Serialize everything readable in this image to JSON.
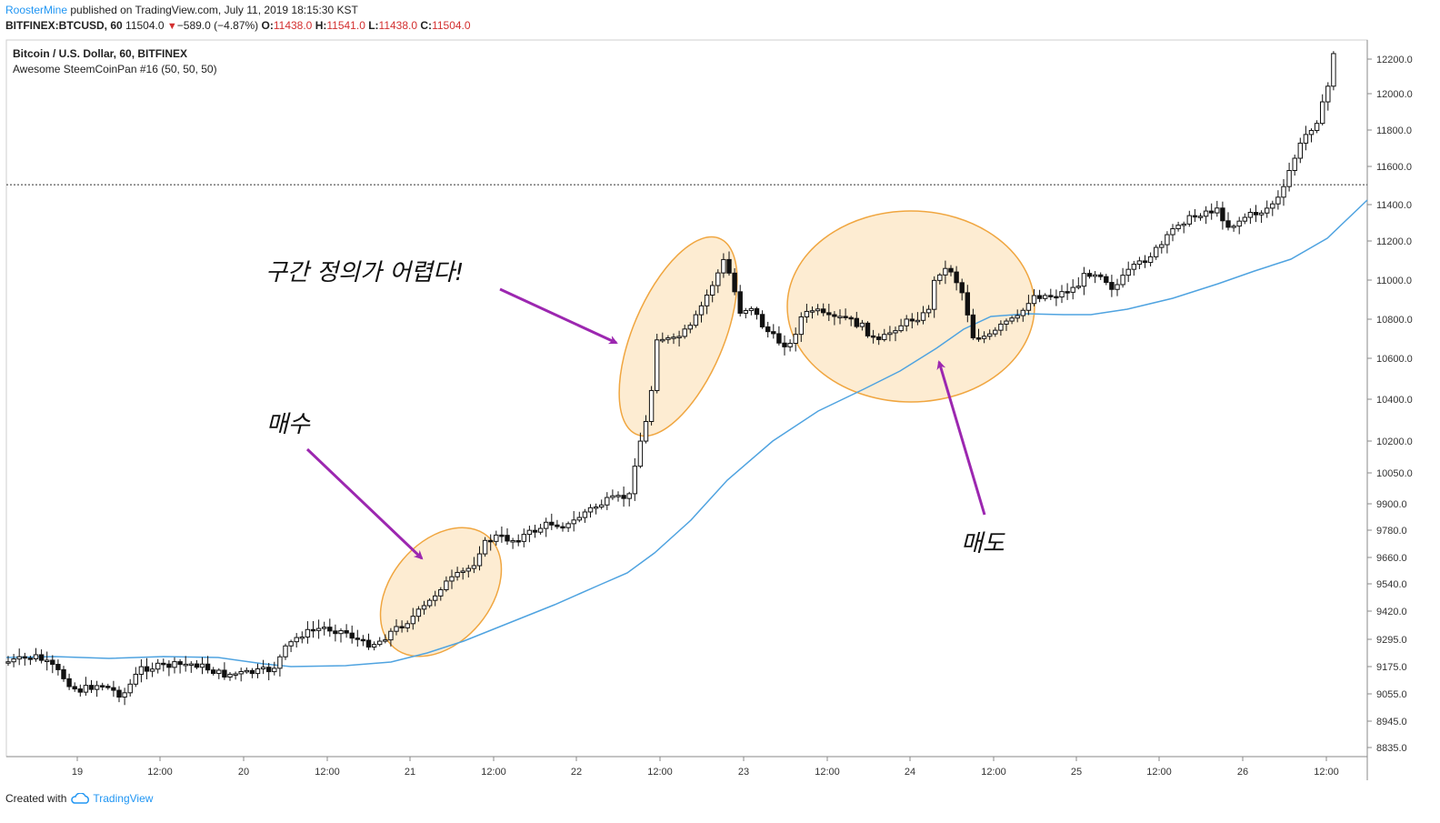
{
  "header": {
    "author": "RoosterMine",
    "published_text": "published on TradingView.com, July 11, 2019 18:15:30 KST",
    "symbol_line": "BITFINEX:BTCUSD, 60",
    "last_price": "11504.0",
    "down_arrow": "▼",
    "change": "−589.0 (−4.87%)",
    "o_label": "O:",
    "o_value": "11438.0",
    "h_label": "H:",
    "h_value": "11541.0",
    "l_label": "L:",
    "l_value": "11438.0",
    "c_label": "C:",
    "c_value": "11504.0"
  },
  "pane": {
    "title": "Bitcoin / U.S. Dollar, 60, BITFINEX",
    "indicator": "Awesome SteemCoinPan #16 (50, 50, 50)"
  },
  "footer": {
    "created_with": "Created with",
    "brand": "TradingView"
  },
  "colors": {
    "ma_line": "#4fa3e0",
    "annotation_fill": "#fdecd2",
    "annotation_stroke": "#f0a640",
    "arrow": "#9c27b0",
    "up_candle": "#ffffff",
    "down_candle": "#111111"
  },
  "annotations": {
    "buy": "매수",
    "hard": "구간 정의가 어렵다!",
    "sell": "매도"
  },
  "chart_data": {
    "type": "candlestick",
    "title": "Bitcoin / U.S. Dollar, 60, BITFINEX",
    "price_line": 11504.0,
    "y_ticks": [
      12200.0,
      12000.0,
      11800.0,
      11600.0,
      11400.0,
      11200.0,
      11000.0,
      10800.0,
      10600.0,
      10400.0,
      10200.0,
      10050.0,
      9900.0,
      9780.0,
      9660.0,
      9540.0,
      9420.0,
      9295.0,
      9175.0,
      9055.0,
      8945.0,
      8835.0
    ],
    "x_ticks": [
      "19",
      "12:00",
      "20",
      "12:00",
      "21",
      "12:00",
      "22",
      "12:00",
      "23",
      "12:00",
      "24",
      "12:00",
      "25",
      "12:00",
      "26",
      "12:00"
    ],
    "series": [
      {
        "name": "Awesome SteemCoinPan #16 (50, 50, 50)"
      }
    ]
  }
}
